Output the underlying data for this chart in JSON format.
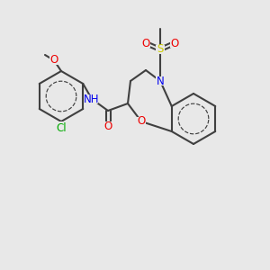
{
  "bg_color": "#e8e8e8",
  "bond_color": "#404040",
  "bond_lw": 1.5,
  "aromatic_lw": 1.3,
  "atom_colors": {
    "N": "#0000ee",
    "O": "#ee0000",
    "S": "#cccc00",
    "Cl": "#00aa00",
    "C": "#404040"
  },
  "font_size": 8.5,
  "font_size_small": 7.5
}
